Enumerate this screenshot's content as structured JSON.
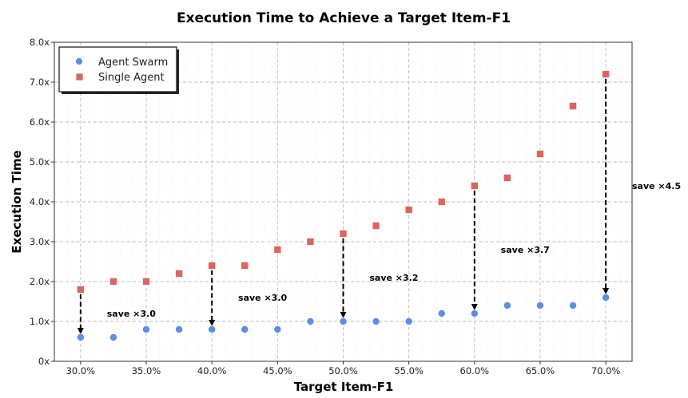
{
  "chart_data": {
    "type": "scatter",
    "title": "Execution Time to Achieve a Target Item-F1",
    "xlabel": "Target Item-F1",
    "ylabel": "Execution Time",
    "xlim": [
      28.0,
      72.0
    ],
    "ylim": [
      0,
      8
    ],
    "x_ticks": [
      30,
      35,
      40,
      45,
      50,
      55,
      60,
      65,
      70
    ],
    "x_tick_labels": [
      "30.0%",
      "35.0%",
      "40.0%",
      "45.0%",
      "50.0%",
      "55.0%",
      "60.0%",
      "65.0%",
      "70.0%"
    ],
    "y_ticks": [
      0,
      1,
      2,
      3,
      4,
      5,
      6,
      7,
      8
    ],
    "y_tick_labels": [
      "0x",
      "1.0x",
      "2.0x",
      "3.0x",
      "4.0x",
      "5.0x",
      "6.0x",
      "7.0x",
      "8.0x"
    ],
    "grid": true,
    "legend_position": "top-left",
    "series": [
      {
        "name": "Agent Swarm",
        "marker": "circle",
        "color": "#5b8fe0",
        "x": [
          30,
          32.5,
          35,
          37.5,
          40,
          42.5,
          45,
          47.5,
          50,
          52.5,
          55,
          57.5,
          60,
          62.5,
          65,
          67.5,
          70
        ],
        "y": [
          0.6,
          0.6,
          0.8,
          0.8,
          0.8,
          0.8,
          0.8,
          1.0,
          1.0,
          1.0,
          1.0,
          1.2,
          1.2,
          1.4,
          1.4,
          1.4,
          1.6
        ]
      },
      {
        "name": "Single Agent",
        "marker": "square",
        "color": "#dc6464",
        "x": [
          30,
          32.5,
          35,
          37.5,
          40,
          42.5,
          45,
          47.5,
          50,
          52.5,
          55,
          57.5,
          60,
          62.5,
          65,
          67.5,
          70
        ],
        "y": [
          1.8,
          2.0,
          2.0,
          2.2,
          2.4,
          2.4,
          2.8,
          3.0,
          3.2,
          3.4,
          3.8,
          4.0,
          4.4,
          4.6,
          5.2,
          6.4,
          7.2
        ]
      }
    ],
    "annotations": [
      {
        "x": 30,
        "y_from": 1.8,
        "y_to": 0.6,
        "label": "save ×3.0",
        "label_x": 32.0,
        "label_y": 1.2
      },
      {
        "x": 40,
        "y_from": 2.4,
        "y_to": 0.8,
        "label": "save ×3.0",
        "label_x": 42.0,
        "label_y": 1.6
      },
      {
        "x": 50,
        "y_from": 3.2,
        "y_to": 1.0,
        "label": "save ×3.2",
        "label_x": 52.0,
        "label_y": 2.1
      },
      {
        "x": 60,
        "y_from": 4.4,
        "y_to": 1.2,
        "label": "save ×3.7",
        "label_x": 62.0,
        "label_y": 2.8
      },
      {
        "x": 70,
        "y_from": 7.2,
        "y_to": 1.6,
        "label": "save ×4.5",
        "label_x": 72.0,
        "label_y": 4.4
      }
    ]
  }
}
